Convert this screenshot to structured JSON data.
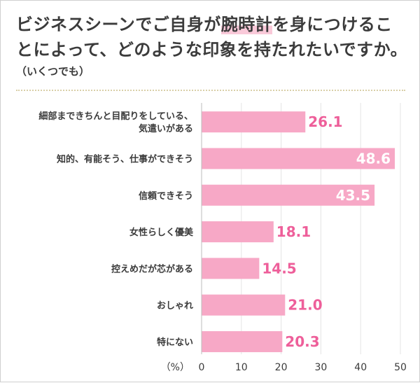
{
  "header": {
    "title_pre": "ビジネスシーンでご自身が",
    "title_highlight": "腕時計",
    "title_post": "を身につけることによって、どのような印象を持たれたいですか。",
    "subtitle": "（いくつでも）"
  },
  "colors": {
    "bar": "#f7a8c6",
    "label_outside": "#ee5f9a",
    "label_inside": "#ffffff",
    "highlight": "#f9c9d9"
  },
  "chart_data": {
    "type": "bar",
    "orientation": "horizontal",
    "title": "ビジネスシーンでご自身が腕時計を身につけることによって、どのような印象を持たれたいですか。",
    "subtitle": "（いくつでも）",
    "unit_label": "（%）",
    "categories": [
      [
        "細部まできちんと目配りをしている、",
        "気遣いがある"
      ],
      [
        "知的、有能そう、仕事ができそう"
      ],
      [
        "信頼できそう"
      ],
      [
        "女性らしく優美"
      ],
      [
        "控えめだが芯がある"
      ],
      [
        "おしゃれ"
      ],
      [
        "特にない"
      ]
    ],
    "values": [
      "26.1",
      "48.6",
      "43.5",
      "18.1",
      "14.5",
      "21.0",
      "20.3"
    ],
    "xlim": [
      0,
      50
    ],
    "ticks": [
      "0",
      "10",
      "20",
      "30",
      "40",
      "50"
    ],
    "grid": true
  }
}
